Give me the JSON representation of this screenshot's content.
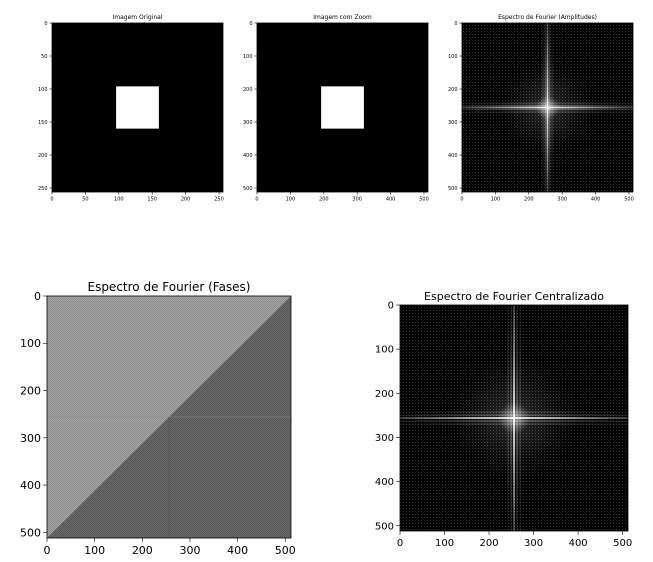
{
  "chart_data": [
    {
      "type": "heatmap",
      "title": "Imagem Original",
      "content": "white-square",
      "image_size": 256,
      "square": [
        96,
        160
      ],
      "xlim": [
        0,
        256
      ],
      "ylim": [
        256,
        0
      ],
      "xticks": [
        0,
        50,
        100,
        150,
        200,
        250
      ],
      "yticks": [
        0,
        50,
        100,
        150,
        200,
        250
      ],
      "colormap": "gray"
    },
    {
      "type": "heatmap",
      "title": "Imagem com Zoom",
      "content": "white-square",
      "image_size": 512,
      "square": [
        192,
        320
      ],
      "xlim": [
        0,
        512
      ],
      "ylim": [
        512,
        0
      ],
      "xticks": [
        0,
        100,
        200,
        300,
        400,
        500
      ],
      "yticks": [
        0,
        100,
        200,
        300,
        400,
        500
      ],
      "colormap": "gray"
    },
    {
      "type": "heatmap",
      "title": "Espectro de Fourier (Amplitudes)",
      "content": "fourier-amplitude",
      "image_size": 512,
      "center": 256,
      "xlim": [
        0,
        512
      ],
      "ylim": [
        512,
        0
      ],
      "xticks": [
        0,
        100,
        200,
        300,
        400,
        500
      ],
      "yticks": [
        0,
        100,
        200,
        300,
        400,
        500
      ],
      "colormap": "gray"
    },
    {
      "type": "heatmap",
      "title": "Espectro de Fourier (Fases)",
      "content": "fourier-phase",
      "image_size": 512,
      "xlim": [
        0,
        512
      ],
      "ylim": [
        512,
        0
      ],
      "xticks": [
        0,
        100,
        200,
        300,
        400,
        500
      ],
      "yticks": [
        0,
        100,
        200,
        300,
        400,
        500
      ],
      "colormap": "gray"
    },
    {
      "type": "heatmap",
      "title": "Espectro de Fourier Centralizado",
      "content": "fourier-amplitude",
      "image_size": 512,
      "center": 256,
      "xlim": [
        0,
        512
      ],
      "ylim": [
        512,
        0
      ],
      "xticks": [
        0,
        100,
        200,
        300,
        400,
        500
      ],
      "yticks": [
        0,
        100,
        200,
        300,
        400,
        500
      ],
      "colormap": "gray"
    }
  ]
}
